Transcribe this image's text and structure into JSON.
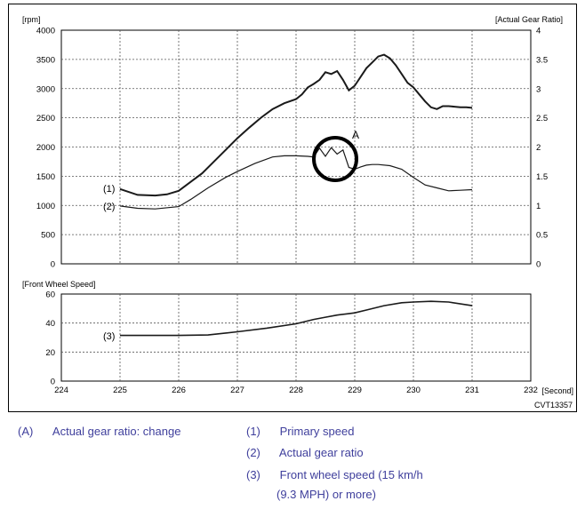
{
  "figure_id": "CVT13357",
  "chart_data": [
    {
      "type": "line",
      "left_axis_label": "[rpm]",
      "right_axis_label": "[Actual Gear Ratio]",
      "ylim_left": [
        0,
        4000
      ],
      "ylim_right": [
        0,
        4
      ],
      "xlim": [
        224,
        232
      ],
      "grid": true,
      "left_ticks": [
        "0",
        "500",
        "1000",
        "1500",
        "2000",
        "2500",
        "3000",
        "3500",
        "4000"
      ],
      "right_ticks": [
        "0",
        "0.5",
        "1",
        "1.5",
        "2",
        "2.5",
        "3",
        "3.5",
        "4"
      ],
      "series": [
        {
          "label": "(1)",
          "axis": "left",
          "x": [
            225.0,
            225.3,
            225.6,
            225.8,
            226.0,
            226.2,
            226.4,
            226.6,
            226.8,
            227.0,
            227.2,
            227.4,
            227.6,
            227.8,
            228.0,
            228.1,
            228.2,
            228.3,
            228.4,
            228.5,
            228.6,
            228.7,
            228.8,
            228.9,
            229.0,
            229.1,
            229.2,
            229.3,
            229.4,
            229.5,
            229.6,
            229.7,
            229.8,
            229.9,
            230.0,
            230.1,
            230.2,
            230.3,
            230.4,
            230.5,
            230.6,
            230.7,
            230.8,
            230.9,
            231.0
          ],
          "y": [
            1280,
            1180,
            1170,
            1190,
            1250,
            1400,
            1550,
            1750,
            1950,
            2150,
            2330,
            2500,
            2650,
            2750,
            2820,
            2900,
            3020,
            3080,
            3150,
            3280,
            3250,
            3300,
            3150,
            2970,
            3050,
            3200,
            3350,
            3450,
            3550,
            3580,
            3520,
            3400,
            3250,
            3100,
            3020,
            2900,
            2780,
            2680,
            2650,
            2700,
            2700,
            2690,
            2680,
            2680,
            2670
          ]
        },
        {
          "label": "(2)",
          "axis": "right",
          "x": [
            225.0,
            225.3,
            225.6,
            226.0,
            226.2,
            226.5,
            226.8,
            227.0,
            227.3,
            227.6,
            227.8,
            228.0,
            228.2,
            228.3,
            228.4,
            228.5,
            228.6,
            228.7,
            228.8,
            228.9,
            229.0,
            229.1,
            229.2,
            229.3,
            229.4,
            229.6,
            229.8,
            230.0,
            230.2,
            230.4,
            230.6,
            230.8,
            231.0
          ],
          "y": [
            0.99,
            0.95,
            0.94,
            0.98,
            1.1,
            1.3,
            1.48,
            1.58,
            1.72,
            1.83,
            1.85,
            1.85,
            1.84,
            1.83,
            1.98,
            1.84,
            1.99,
            1.88,
            1.95,
            1.65,
            1.62,
            1.66,
            1.69,
            1.7,
            1.7,
            1.68,
            1.62,
            1.48,
            1.35,
            1.3,
            1.25,
            1.26,
            1.27
          ]
        }
      ]
    },
    {
      "type": "line",
      "axis_label": "[Front Wheel Speed]",
      "ylim": [
        0,
        60
      ],
      "xlim": [
        224,
        232
      ],
      "grid": true,
      "y_ticks": [
        "0",
        "20",
        "40",
        "60"
      ],
      "x_ticks": [
        "224",
        "225",
        "226",
        "227",
        "228",
        "229",
        "230",
        "231",
        "232"
      ],
      "x_unit_label": "[Second]",
      "series": [
        {
          "label": "(3)",
          "x": [
            225.0,
            225.5,
            226.0,
            226.5,
            227.0,
            227.5,
            228.0,
            228.3,
            228.5,
            228.7,
            228.9,
            229.0,
            229.2,
            229.5,
            229.8,
            230.0,
            230.3,
            230.6,
            231.0
          ],
          "y": [
            31.5,
            31.5,
            31.5,
            31.8,
            34,
            36.5,
            39.5,
            42.5,
            44,
            45.5,
            46.5,
            47,
            49,
            52,
            54,
            54.5,
            55,
            54.5,
            52
          ]
        }
      ],
      "annotation": {
        "text": "A",
        "x": 228.7,
        "y_right": 1.85
      }
    }
  ],
  "legend": {
    "a_code": "(A)",
    "a_text": "Actual gear ratio: change",
    "i1_code": "(1)",
    "i1_text": "Primary speed",
    "i2_code": "(2)",
    "i2_text": "Actual gear ratio",
    "i3_code": "(3)",
    "i3_text_line1": "Front wheel speed (15 km/h",
    "i3_text_line2": "(9.3 MPH) or more)"
  },
  "colors": {
    "line": "#1a1a1a",
    "grid": "#555555",
    "legend_text": "#3f3f9c"
  }
}
